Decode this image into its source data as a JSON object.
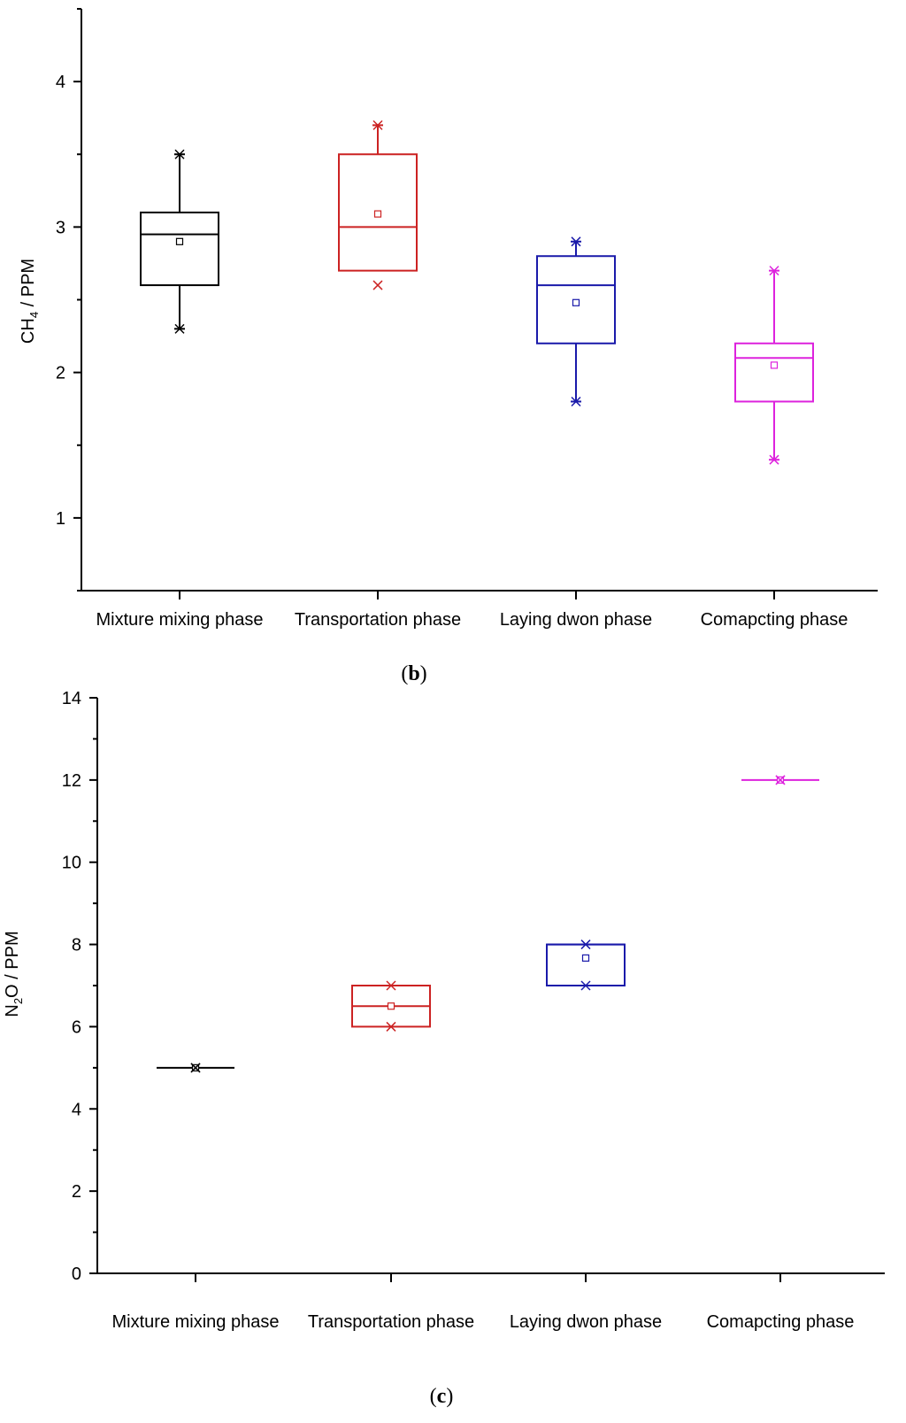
{
  "chart_data": [
    {
      "type": "box",
      "panel_label": "b",
      "title": "",
      "xlabel": "",
      "ylabel": {
        "base": "CH",
        "sub": "4",
        "rest": " / PPM"
      },
      "ylim": [
        0.5,
        4.5
      ],
      "yticks": [
        1,
        2,
        3,
        4
      ],
      "grid": false,
      "categories": [
        "Mixture mixing phase",
        "Transportation phase",
        "Laying dwon phase",
        "Comapcting phase"
      ],
      "series": [
        {
          "name": "Mixture mixing phase",
          "color": "#000000",
          "min": 2.3,
          "q1": 2.6,
          "median": 2.95,
          "q3": 3.1,
          "max": 3.5,
          "mean": 2.9,
          "whisker_low": 2.3,
          "whisker_high": 3.5
        },
        {
          "name": "Transportation phase",
          "color": "#cc2222",
          "min": 2.6,
          "q1": 2.7,
          "median": 3.0,
          "q3": 3.5,
          "max": 3.7,
          "mean": 3.09,
          "whisker_low": 2.7,
          "whisker_high": 3.7
        },
        {
          "name": "Laying dwon phase",
          "color": "#1a1aaa",
          "min": 1.8,
          "q1": 2.2,
          "median": 2.6,
          "q3": 2.8,
          "max": 2.9,
          "mean": 2.48,
          "whisker_low": 1.8,
          "whisker_high": 2.9
        },
        {
          "name": "Comapcting phase",
          "color": "#dd22dd",
          "min": 1.4,
          "q1": 1.8,
          "median": 2.1,
          "q3": 2.2,
          "max": 2.7,
          "mean": 2.05,
          "whisker_low": 1.4,
          "whisker_high": 2.7
        }
      ]
    },
    {
      "type": "box",
      "panel_label": "c",
      "title": "",
      "xlabel": "",
      "ylabel": {
        "base": "N",
        "sub": "2",
        "rest": "O / PPM"
      },
      "ylim": [
        0,
        14
      ],
      "yticks": [
        0,
        2,
        4,
        6,
        8,
        10,
        12,
        14
      ],
      "grid": false,
      "categories": [
        "Mixture mixing phase",
        "Transportation phase",
        "Laying dwon phase",
        "Comapcting phase"
      ],
      "series": [
        {
          "name": "Mixture mixing phase",
          "color": "#000000",
          "min": 5,
          "q1": 5,
          "median": 5,
          "q3": 5,
          "max": 5,
          "mean": 5
        },
        {
          "name": "Transportation phase",
          "color": "#cc2222",
          "min": 6,
          "q1": 6,
          "median": 6.5,
          "q3": 7,
          "max": 7,
          "mean": 6.5
        },
        {
          "name": "Laying dwon phase",
          "color": "#1a1aaa",
          "min": 7,
          "q1": 7,
          "median": 8,
          "q3": 8,
          "max": 8,
          "mean": 7.67
        },
        {
          "name": "Comapcting phase",
          "color": "#dd22dd",
          "min": 12,
          "q1": 12,
          "median": 12,
          "q3": 12,
          "max": 12,
          "mean": 12
        }
      ]
    }
  ]
}
